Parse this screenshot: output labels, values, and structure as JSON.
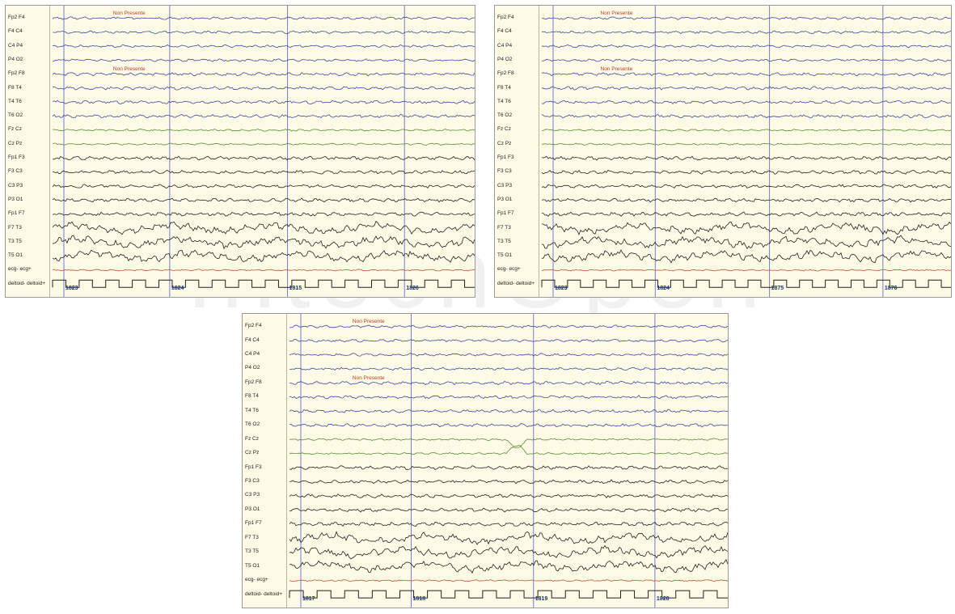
{
  "watermark": "IntechOpen",
  "colors": {
    "background": "#fdfbe6",
    "trace_blue": "#3b4aa0",
    "trace_green": "#5a8a3a",
    "trace_black": "#222222",
    "trace_red": "#b5563a",
    "marker_line": "#7a7ad0",
    "annotation_red": "#c0392b",
    "time_blue": "#1a2aa8"
  },
  "annotation_text": "Non Presente",
  "panels": [
    {
      "id": "panel-top-left",
      "channels": [
        "Fp2 F4",
        "F4 C4",
        "C4 P4",
        "P4 O2",
        "Fp2 F8",
        "F8 T4",
        "T4 T6",
        "T6 O2",
        "Fz Cz",
        "Cz Pz",
        "Fp1 F3",
        "F3 C3",
        "C3 P3",
        "P3 O1",
        "Fp1 F7",
        "F7 T3",
        "T3 T5",
        "T5 O1",
        "ecg- ecg+",
        "deltoid- deltoid+"
      ],
      "time_labels": [
        "1823",
        "1824",
        "1815",
        "1826"
      ]
    },
    {
      "id": "panel-top-right",
      "channels": [
        "Fp2 F4",
        "F4 C4",
        "C4 P4",
        "P4 O2",
        "Fp2 F8",
        "F8 T4",
        "T4 T6",
        "T6 O2",
        "Fz Cz",
        "Cz Pz",
        "Fp1 F3",
        "F3 C3",
        "C3 P3",
        "P3 O1",
        "Fp1 F7",
        "F7 T3",
        "T3 T5",
        "T5 O1",
        "ecg- ecg+",
        "deltoid- deltoid+"
      ],
      "time_labels": [
        "1823",
        "1824",
        "1875",
        "1876"
      ]
    },
    {
      "id": "panel-bottom",
      "channels": [
        "Fp2 F4",
        "F4 C4",
        "C4 P4",
        "P4 O2",
        "Fp2 F8",
        "F8 T4",
        "T4 T6",
        "T6 O2",
        "Fz Cz",
        "Cz Pz",
        "Fp1 F3",
        "F3 C3",
        "C3 P3",
        "P3 O1",
        "Fp1 F7",
        "F7 T3",
        "T3 T5",
        "T5 O1",
        "ecg- ecg+",
        "deltoid- deltoid+"
      ],
      "time_labels": [
        "1817",
        "1818",
        "1819",
        "1820"
      ]
    }
  ]
}
